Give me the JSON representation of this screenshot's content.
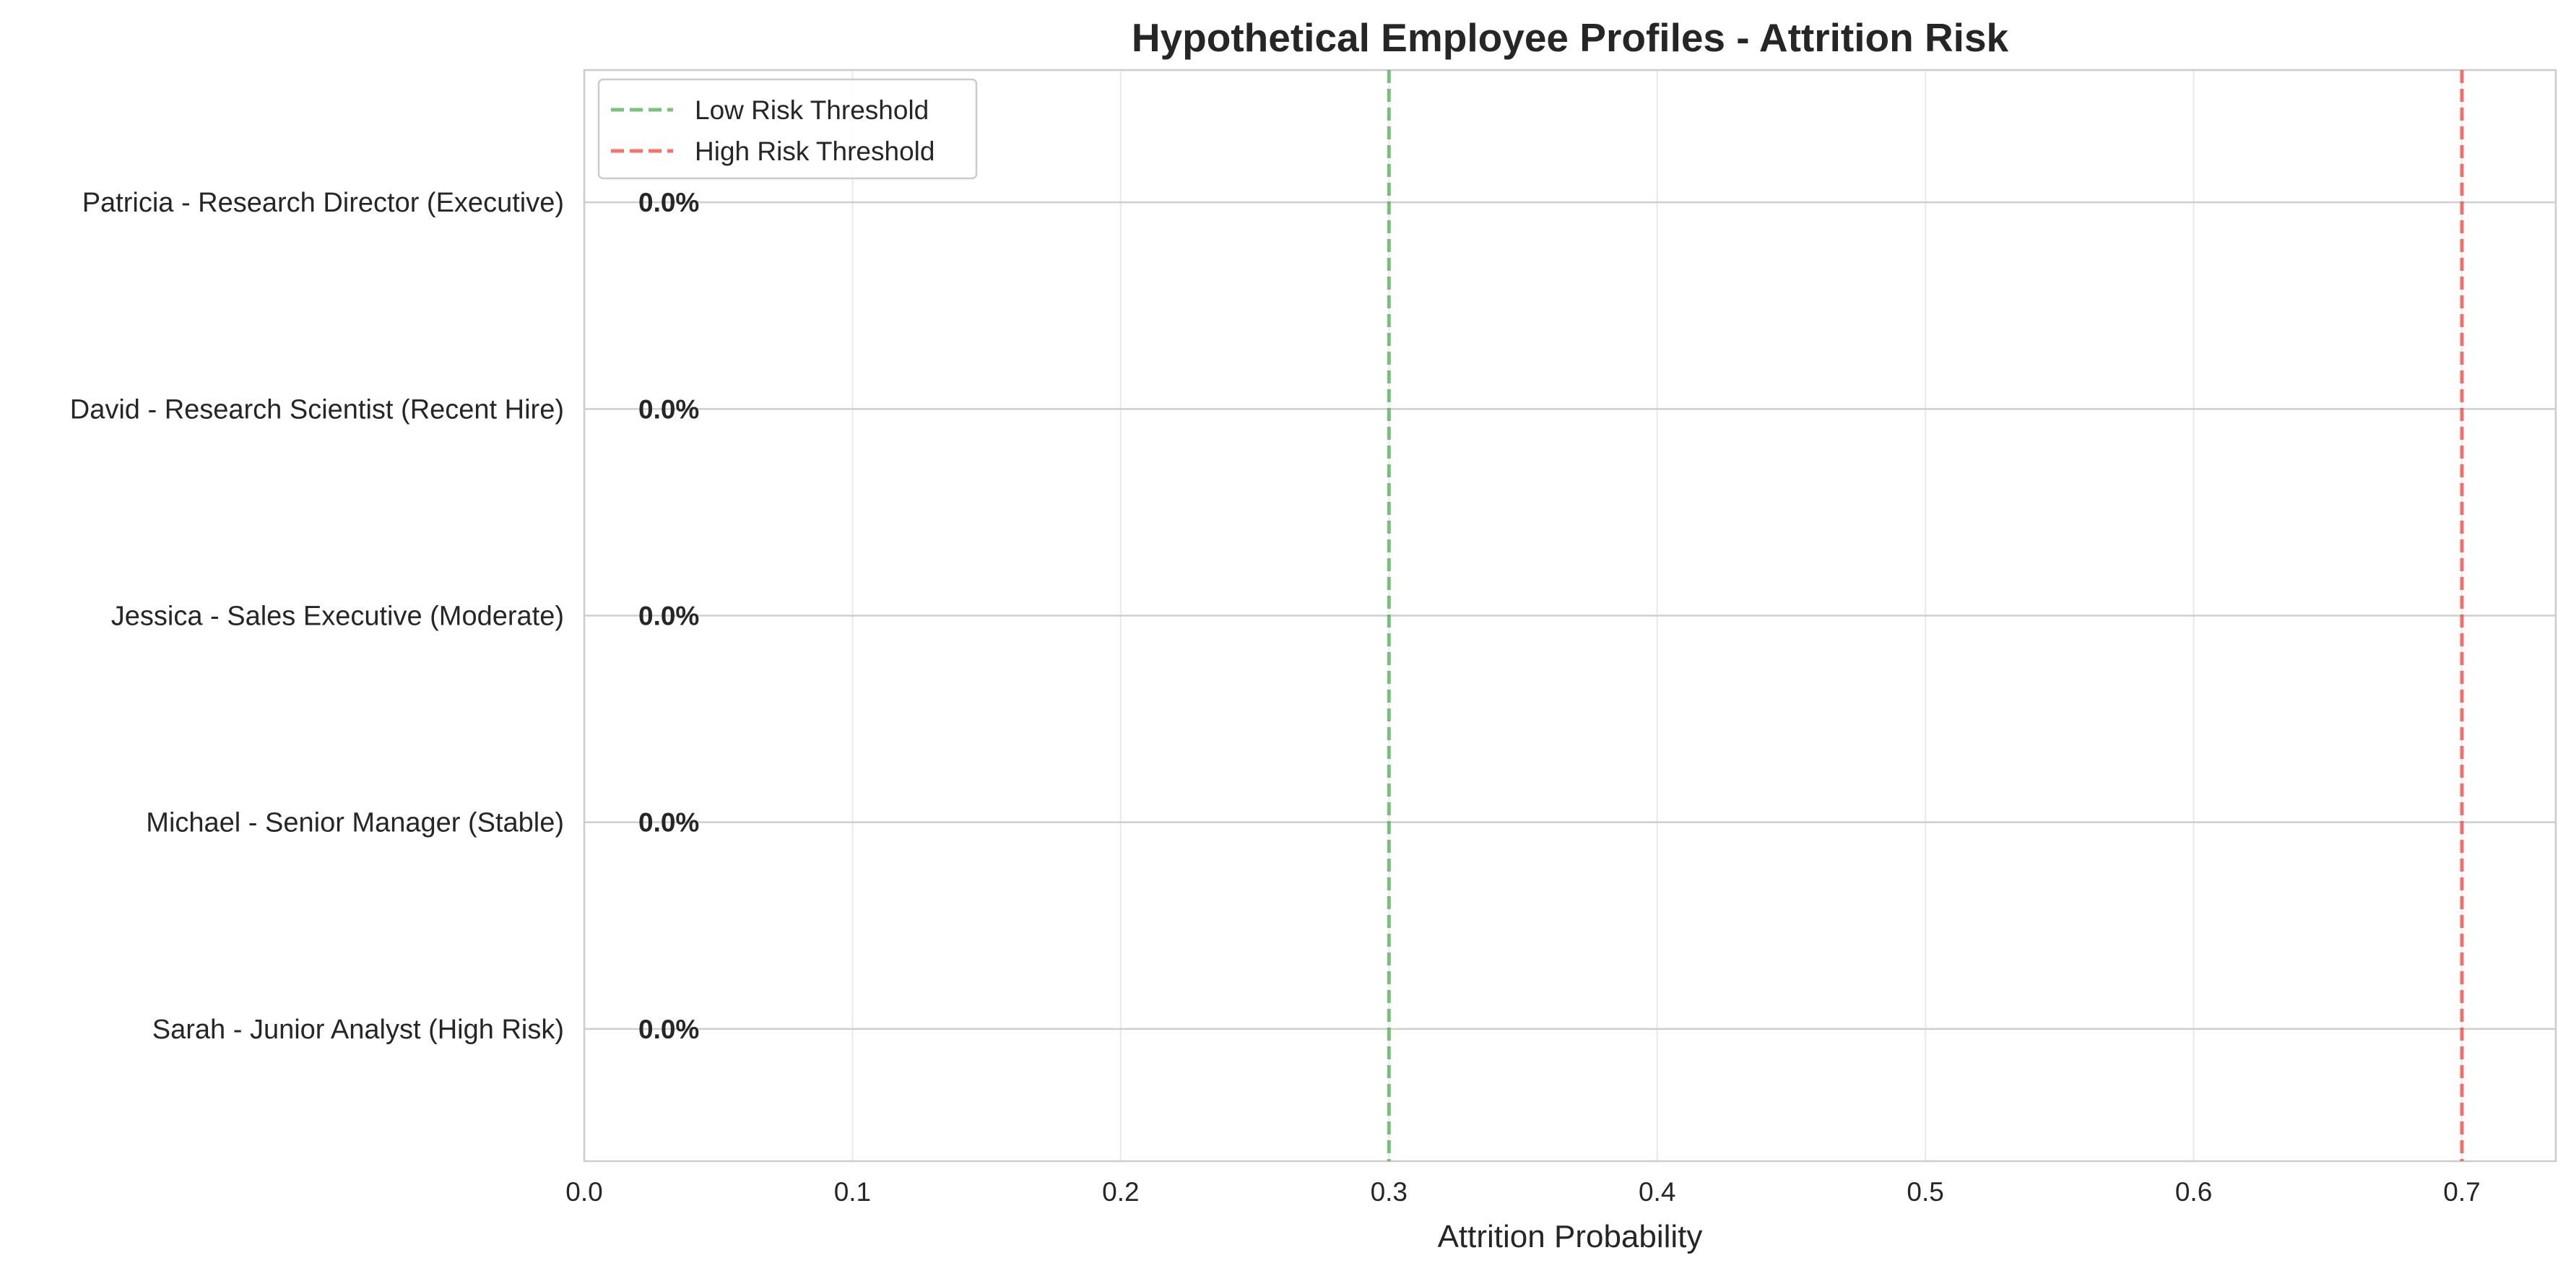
{
  "chart_data": {
    "type": "bar",
    "orientation": "horizontal",
    "title": "Hypothetical Employee Profiles - Attrition Risk",
    "xlabel": "Attrition Probability",
    "ylabel": "",
    "xlim": [
      0,
      0.735
    ],
    "xticks": [
      0.0,
      0.1,
      0.2,
      0.3,
      0.4,
      0.5,
      0.6,
      0.7
    ],
    "xtick_labels": [
      "0.0",
      "0.1",
      "0.2",
      "0.3",
      "0.4",
      "0.5",
      "0.6",
      "0.7"
    ],
    "categories": [
      "Patricia - Research Director (Executive)",
      "David - Research Scientist (Recent Hire)",
      "Jessica - Sales Executive (Moderate)",
      "Michael - Senior Manager (Stable)",
      "Sarah - Junior Analyst (High Risk)"
    ],
    "values": [
      0.0,
      0.0,
      0.0,
      0.0,
      0.0
    ],
    "value_labels": [
      "0.0%",
      "0.0%",
      "0.0%",
      "0.0%",
      "0.0%"
    ],
    "thresholds": [
      {
        "name": "Low Risk Threshold",
        "value": 0.3,
        "color": "#4caf50"
      },
      {
        "name": "High Risk Threshold",
        "value": 0.7,
        "color": "#f44336"
      }
    ],
    "grid": true,
    "legend_position": "upper-left"
  }
}
